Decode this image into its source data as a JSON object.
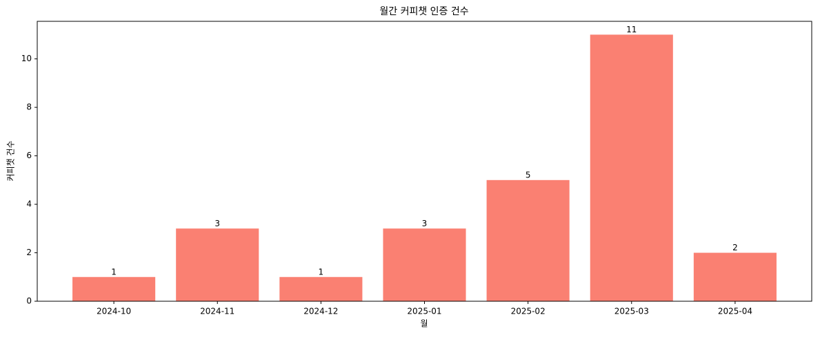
{
  "chart_data": {
    "type": "bar",
    "title": "월간 커피챗 인증 건수",
    "x_label": "월",
    "y_label": "커피챗 건수",
    "categories": [
      "2024-10",
      "2024-11",
      "2024-12",
      "2025-01",
      "2025-02",
      "2025-03",
      "2025-04"
    ],
    "values": [
      1,
      3,
      1,
      3,
      5,
      11,
      2
    ],
    "color": "#fa8072",
    "ylim": [
      0,
      11.55
    ],
    "yticks": [
      0,
      2,
      4,
      6,
      8,
      10
    ],
    "grid": false
  }
}
